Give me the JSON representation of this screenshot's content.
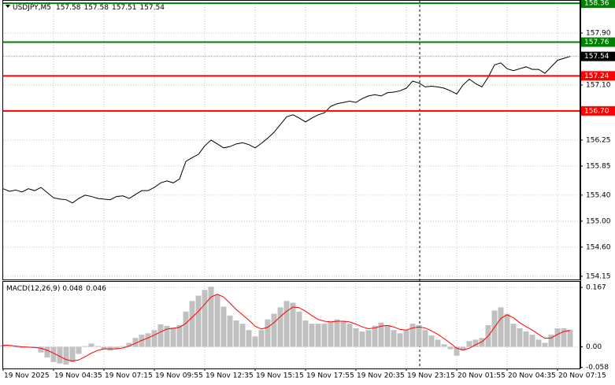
{
  "chart_data": {
    "type": "line",
    "symbol": "USDJPY,M5",
    "ohlc": [
      157.58,
      157.58,
      157.51,
      157.54
    ],
    "categories": [
      "19 Nov 2025",
      null,
      null,
      null,
      null,
      null,
      null,
      null,
      "19 Nov 04:35",
      null,
      null,
      null,
      null,
      null,
      null,
      null,
      "19 Nov 07:15",
      null,
      null,
      null,
      null,
      null,
      null,
      null,
      "19 Nov 09:55",
      null,
      null,
      null,
      null,
      null,
      null,
      null,
      "19 Nov 12:35",
      null,
      null,
      null,
      null,
      null,
      null,
      null,
      "19 Nov 15:15",
      null,
      null,
      null,
      null,
      null,
      null,
      null,
      "19 Nov 17:55",
      null,
      null,
      null,
      null,
      null,
      null,
      null,
      "19 Nov 20:35",
      null,
      null,
      null,
      null,
      null,
      null,
      null,
      "19 Nov 23:15",
      null,
      null,
      null,
      null,
      null,
      null,
      null,
      "20 Nov 01:55",
      null,
      null,
      null,
      null,
      null,
      null,
      null,
      "20 Nov 04:35",
      null,
      null,
      null,
      null,
      null,
      null,
      null,
      "20 Nov 07:15",
      null,
      null
    ],
    "ylim": [
      154.1,
      158.41
    ],
    "yticks": [
      154.15,
      {
        "value": 154.6,
        "label": "154.60"
      },
      {
        "value": 155,
        "label": "155.00"
      },
      {
        "value": 155.4,
        "label": "155.40"
      },
      155.85,
      156.25,
      {
        "value": 157.1,
        "label": "157.10"
      },
      {
        "value": 157.9,
        "label": "157.90"
      }
    ],
    "grid": true,
    "levels": [
      {
        "value": 158.36,
        "color": "#008000"
      },
      {
        "value": 157.76,
        "color": "#008000"
      },
      {
        "value": 157.24,
        "color": "#ff0000"
      },
      {
        "value": 156.7,
        "label": "156.70",
        "color": "#ff0000"
      }
    ],
    "series": [
      {
        "name": "USDJPY,M5",
        "color": "#000000",
        "values": [
          155.5,
          155.46,
          155.48,
          155.45,
          155.5,
          155.47,
          155.52,
          155.44,
          155.36,
          155.34,
          155.33,
          155.28,
          155.35,
          155.4,
          155.38,
          155.35,
          155.34,
          155.33,
          155.38,
          155.39,
          155.35,
          155.41,
          155.47,
          155.47,
          155.52,
          155.59,
          155.62,
          155.59,
          155.65,
          155.92,
          155.98,
          156.03,
          156.16,
          156.25,
          156.19,
          156.13,
          156.15,
          156.19,
          156.21,
          156.18,
          156.13,
          156.2,
          156.28,
          156.37,
          156.49,
          156.61,
          156.64,
          156.59,
          156.53,
          156.59,
          156.64,
          156.67,
          156.77,
          156.81,
          156.83,
          156.85,
          156.83,
          156.89,
          156.93,
          156.95,
          156.93,
          156.98,
          156.99,
          157.01,
          157.05,
          157.16,
          157.13,
          157.07,
          157.08,
          157.07,
          157.05,
          157.01,
          156.96,
          157.1,
          157.19,
          157.12,
          157.07,
          157.22,
          157.41,
          157.44,
          157.35,
          157.32,
          157.35,
          157.38,
          157.34,
          157.34,
          157.28,
          157.38,
          157.48,
          157.51,
          157.54
        ]
      }
    ],
    "macd": {
      "name": "MACD(12,26,9)",
      "y2lim": [
        -0.061,
        0.185
      ],
      "y2ticks": [
        0.167,
        {
          "value": 0,
          "label": "0.00"
        },
        -0.058
      ],
      "series": [
        {
          "name": "MACD",
          "type": "bar",
          "color": "#c0c0c0",
          "axis": "y2",
          "values": [
            0.005,
            0.002,
            -0.002,
            -0.002,
            -0.002,
            -0.002,
            -0.016,
            -0.03,
            -0.043,
            -0.047,
            -0.05,
            -0.043,
            -0.02,
            0.002,
            0.009,
            0.002,
            -0.007,
            -0.011,
            -0.005,
            0.002,
            0.011,
            0.025,
            0.034,
            0.038,
            0.047,
            0.063,
            0.059,
            0.054,
            0.061,
            0.099,
            0.129,
            0.144,
            0.16,
            0.169,
            0.147,
            0.113,
            0.088,
            0.074,
            0.065,
            0.047,
            0.029,
            0.047,
            0.077,
            0.093,
            0.111,
            0.129,
            0.124,
            0.099,
            0.074,
            0.065,
            0.065,
            0.065,
            0.07,
            0.077,
            0.072,
            0.065,
            0.052,
            0.043,
            0.047,
            0.059,
            0.068,
            0.061,
            0.047,
            0.038,
            0.047,
            0.065,
            0.061,
            0.047,
            0.032,
            0.02,
            0.007,
            -0.007,
            -0.025,
            -0.011,
            0.016,
            0.02,
            0.025,
            0.061,
            0.102,
            0.111,
            0.093,
            0.065,
            0.052,
            0.043,
            0.034,
            0.02,
            0.011,
            0.034,
            0.052,
            0.052,
            0.048
          ]
        },
        {
          "name": "Signal",
          "type": "line",
          "color": "#ff0000",
          "axis": "y2",
          "values": [
            0.005,
            0.004,
            0.002,
            0,
            -0.001,
            -0.002,
            -0.004,
            -0.01,
            -0.018,
            -0.027,
            -0.036,
            -0.04,
            -0.037,
            -0.028,
            -0.018,
            -0.01,
            -0.006,
            -0.006,
            -0.006,
            -0.003,
            0.002,
            0.01,
            0.018,
            0.025,
            0.033,
            0.042,
            0.05,
            0.052,
            0.055,
            0.066,
            0.083,
            0.1,
            0.12,
            0.14,
            0.148,
            0.14,
            0.123,
            0.105,
            0.09,
            0.075,
            0.058,
            0.05,
            0.055,
            0.068,
            0.085,
            0.1,
            0.112,
            0.11,
            0.1,
            0.088,
            0.077,
            0.072,
            0.07,
            0.072,
            0.072,
            0.07,
            0.064,
            0.056,
            0.051,
            0.053,
            0.058,
            0.06,
            0.056,
            0.049,
            0.047,
            0.053,
            0.056,
            0.053,
            0.045,
            0.035,
            0.023,
            0.01,
            -0.004,
            -0.009,
            -0.004,
            0.006,
            0.014,
            0.03,
            0.055,
            0.08,
            0.09,
            0.082,
            0.068,
            0.057,
            0.047,
            0.035,
            0.024,
            0.025,
            0.035,
            0.043,
            0.046
          ]
        }
      ]
    }
  }
}
